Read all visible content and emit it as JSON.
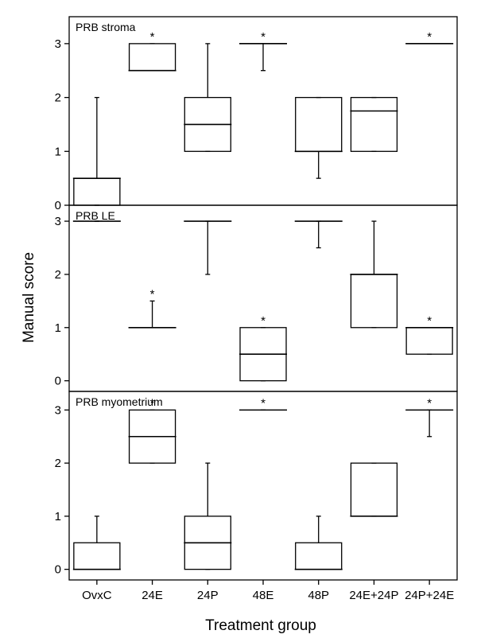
{
  "figure": {
    "ylabel": "Manual score",
    "xlabel": "Treatment group"
  },
  "chart_data": [
    {
      "type": "box",
      "title": "PRB stroma",
      "categories": [
        "OvxC",
        "24E",
        "24P",
        "48E",
        "48P",
        "24E+24P",
        "24P+24E"
      ],
      "ylim": [
        0,
        3.5
      ],
      "yticks": [
        0,
        1,
        2,
        3
      ],
      "boxes": [
        {
          "min": 0,
          "q1": 0,
          "median": 0.5,
          "q3": 0.5,
          "max": 2,
          "sig": false
        },
        {
          "min": 2.5,
          "q1": 2.5,
          "median": 2.5,
          "q3": 3,
          "max": 3,
          "sig": true
        },
        {
          "min": 1,
          "q1": 1,
          "median": 1.5,
          "q3": 2,
          "max": 3,
          "sig": false
        },
        {
          "min": 2.5,
          "q1": 3,
          "median": 3,
          "q3": 3,
          "max": 3,
          "sig": true
        },
        {
          "min": 0.5,
          "q1": 1,
          "median": 1,
          "q3": 2,
          "max": 2,
          "sig": false
        },
        {
          "min": 1,
          "q1": 1,
          "median": 1.75,
          "q3": 2,
          "max": 2,
          "sig": false
        },
        {
          "min": 3,
          "q1": 3,
          "median": 3,
          "q3": 3,
          "max": 3,
          "sig": true
        }
      ]
    },
    {
      "type": "box",
      "title": "PRB LE",
      "categories": [
        "OvxC",
        "24E",
        "24P",
        "48E",
        "48P",
        "24E+24P",
        "24P+24E"
      ],
      "ylim": [
        -0.2,
        3.3
      ],
      "yticks": [
        0,
        1,
        2,
        3
      ],
      "boxes": [
        {
          "min": 3,
          "q1": 3,
          "median": 3,
          "q3": 3,
          "max": 3,
          "sig": false
        },
        {
          "min": 1,
          "q1": 1,
          "median": 1,
          "q3": 1,
          "max": 1.5,
          "sig": true
        },
        {
          "min": 2,
          "q1": 3,
          "median": 3,
          "q3": 3,
          "max": 3,
          "sig": false
        },
        {
          "min": 0,
          "q1": 0,
          "median": 0.5,
          "q3": 1,
          "max": 1,
          "sig": true
        },
        {
          "min": 2.5,
          "q1": 3,
          "median": 3,
          "q3": 3,
          "max": 3,
          "sig": false
        },
        {
          "min": 1,
          "q1": 1,
          "median": 2,
          "q3": 2,
          "max": 3,
          "sig": false
        },
        {
          "min": 0.5,
          "q1": 0.5,
          "median": 1,
          "q3": 1,
          "max": 1,
          "sig": true
        }
      ]
    },
    {
      "type": "box",
      "title": "PRB myometrium",
      "categories": [
        "OvxC",
        "24E",
        "24P",
        "48E",
        "48P",
        "24E+24P",
        "24P+24E"
      ],
      "ylim": [
        -0.2,
        3.35
      ],
      "yticks": [
        0,
        1,
        2,
        3
      ],
      "boxes": [
        {
          "min": 0,
          "q1": 0,
          "median": 0,
          "q3": 0.5,
          "max": 1,
          "sig": false
        },
        {
          "min": 2,
          "q1": 2,
          "median": 2.5,
          "q3": 3,
          "max": 3,
          "sig": true
        },
        {
          "min": 0,
          "q1": 0,
          "median": 0.5,
          "q3": 1,
          "max": 2,
          "sig": false
        },
        {
          "min": 3,
          "q1": 3,
          "median": 3,
          "q3": 3,
          "max": 3,
          "sig": true
        },
        {
          "min": 0,
          "q1": 0,
          "median": 0,
          "q3": 0.5,
          "max": 1,
          "sig": false
        },
        {
          "min": 1,
          "q1": 1,
          "median": 1,
          "q3": 2,
          "max": 2,
          "sig": false
        },
        {
          "min": 2.5,
          "q1": 3,
          "median": 3,
          "q3": 3,
          "max": 3,
          "sig": true
        }
      ]
    }
  ]
}
